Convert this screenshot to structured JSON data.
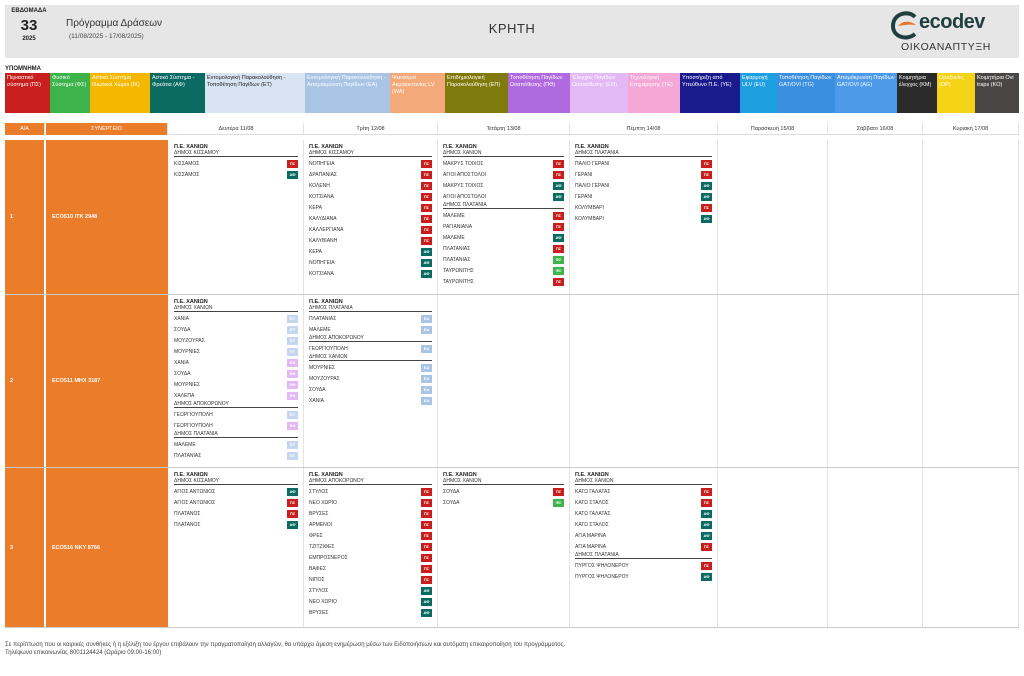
{
  "header": {
    "week_label": "ΕΒΔΟΜΑΔΑ",
    "week_number": "33",
    "year": "2025",
    "program_title": "Πρόγραμμα Δράσεων",
    "program_range": "(11/08/2025 - 17/08/2025)",
    "region": "ΚΡΗΤΗ",
    "logo_word": "ecodev",
    "logo_sub": "ΟΙΚΟΑΝΑΠΤΥΞΗ"
  },
  "legend": {
    "title": "ΥΠΟΜΝΗΜΑ",
    "items": [
      {
        "code": "ΠΣ",
        "label": "Περιαστικό σύστημα (ΠΣ)",
        "bg": "#c81e1e",
        "fg": "#ffffff"
      },
      {
        "code": "ΦΣ",
        "label": "Φυσικό Σύστημα (ΦΣ)",
        "bg": "#3cb44b",
        "fg": "#ffffff"
      },
      {
        "code": "ΙΧ",
        "label": "Αστικό Σύστημα Ιδιωτικοί Χώροι (ΙΧ)",
        "bg": "#f5b800",
        "fg": "#ffffff"
      },
      {
        "code": "ΑΦ",
        "label": "Αστικό Σύστημα - Φρεάτια (ΑΦ)",
        "bg": "#0b6b63",
        "fg": "#ffffff"
      },
      {
        "code": "ΕΤ",
        "label": "Εντομολογική Παρακολούθηση - Τοποθέτηση Παγίδων (ΕΤ)",
        "bg": "#d9e4f2",
        "fg": "#222222"
      },
      {
        "code": "ΕΑ",
        "label": "Εντομολογική Παρακολούθηση - Απομάκρυνση Παγίδων (ΕΑ)",
        "bg": "#a9c4e4",
        "fg": "#ffffff"
      },
      {
        "code": "WA",
        "label": "Ψεκασμοί Ακμαιοκτονίας LV (WA)",
        "bg": "#f4a97a",
        "fg": "#ffffff"
      },
      {
        "code": "ΕΠ",
        "label": "Επιδημιολογική Παρακολούθηση (ΕΠ)",
        "bg": "#807a0c",
        "fg": "#ffffff"
      },
      {
        "code": "ΠΘ",
        "label": "Τοποθέτηση Παγίδων Ωοαπόθεσης (ΠΘ)",
        "bg": "#b06ae0",
        "fg": "#ffffff"
      },
      {
        "code": "ΕΘ",
        "label": "Έλεγχος Παγίδων Ωοαπόθεσης (ΕΘ)",
        "bg": "#e2b8f5",
        "fg": "#ffffff"
      },
      {
        "code": "ΤΕ",
        "label": "Τεχνολογική Επιχείρησης (ΤΕ)",
        "bg": "#f5a7d6",
        "fg": "#ffffff"
      },
      {
        "code": "ΥΕ",
        "label": "Υποστήριξη από Υπεύθυνο Π.Ε. (ΥΕ)",
        "bg": "#1a1a8c",
        "fg": "#ffffff"
      },
      {
        "code": "EU",
        "label": "Εφαρμογή ULV (EU)",
        "bg": "#1e9fe0",
        "fg": "#ffffff"
      },
      {
        "code": "TG",
        "label": "Τοποθέτηση Παγίδων GAT/OVI (TG)",
        "bg": "#3a8fe0",
        "fg": "#ffffff"
      },
      {
        "code": "AG",
        "label": "Απομάκρυνση Παγίδων GAT/OVI (AG)",
        "bg": "#4d9be8",
        "fg": "#ffffff"
      },
      {
        "code": "KM",
        "label": "Κοιμητήρια έλεγχος (KM)",
        "bg": "#2b2b2b",
        "fg": "#ffffff"
      },
      {
        "code": "OP",
        "label": "Οροξυνίες (OP)",
        "bg": "#f5d316",
        "fg": "#ffffff"
      },
      {
        "code": "KO",
        "label": "Κοιμητήρια Ovi traps (KO)",
        "bg": "#4a4646",
        "fg": "#ffffff"
      }
    ]
  },
  "table": {
    "col_aa": "Α/Α",
    "col_syn": "ΣΥΝΕΡΓΕΙΟ",
    "days": [
      "Δευτέρα 11/08",
      "Τρίτη 12/08",
      "Τετάρτη 13/08",
      "Πέμπτη 14/08",
      "Παρασκευή 15/08",
      "Σάββατο 16/08",
      "Κυριακή 17/08"
    ]
  },
  "badge_colors": {
    "ΠΣ": "#c81e1e",
    "ΑΦ": "#0b6b63",
    "ΦΣ": "#3cb44b",
    "ΕΤ": "#c4d7ee",
    "ΕΑ": "#a9c4e4",
    "ΕΘ": "#e2b8f5"
  },
  "rows": [
    {
      "aa": "1",
      "team": "ECO510   ΙΤΚ 2948",
      "days": [
        {
          "pe": "Π.Ε. ΧΑΝΙΩΝ",
          "groups": [
            {
              "muni": "ΔΗΜΟΣ ΚΙΣΣΑΜΟΥ",
              "entries": [
                [
                  "ΚΙΣΣΑΜΟΣ",
                  "ΠΣ"
                ],
                [
                  "ΚΙΣΣΑΜΟΣ",
                  "ΑΦ"
                ]
              ]
            }
          ]
        },
        {
          "pe": "Π.Ε. ΧΑΝΙΩΝ",
          "groups": [
            {
              "muni": "ΔΗΜΟΣ ΚΙΣΣΑΜΟΥ",
              "entries": [
                [
                  "ΝΟΠΗΓΕΙΑ",
                  "ΠΣ"
                ],
                [
                  "ΔΡΑΠΑΝΙΑΣ",
                  "ΠΣ"
                ],
                [
                  "ΚΟΛΕΝΗ",
                  "ΠΣ"
                ],
                [
                  "ΚΟΤΣΙΑΝΑ",
                  "ΠΣ"
                ],
                [
                  "ΚΕΡΑ",
                  "ΠΣ"
                ],
                [
                  "ΚΑΛΥΔΙΑΝΑ",
                  "ΠΣ"
                ],
                [
                  "ΚΑΛΛΕΡΓΙΑΝΑ",
                  "ΠΣ"
                ],
                [
                  "ΚΑΛΥΒΙΑΝΗ",
                  "ΠΣ"
                ],
                [
                  "ΚΕΡΑ",
                  "ΑΦ"
                ],
                [
                  "ΝΟΠΗΓΕΙΑ",
                  "ΑΦ"
                ],
                [
                  "ΚΟΤΣΙΑΝΑ",
                  "ΑΦ"
                ]
              ]
            }
          ]
        },
        {
          "pe": "Π.Ε. ΧΑΝΙΩΝ",
          "groups": [
            {
              "muni": "ΔΗΜΟΣ ΧΑΝΙΩΝ",
              "entries": [
                [
                  "ΜΑΚΡΥΣ ΤΟΙΧΟΣ",
                  "ΠΣ"
                ],
                [
                  "ΑΓΙΟΙ ΑΠΟΣΤΟΛΟΙ",
                  "ΠΣ"
                ],
                [
                  "ΜΑΚΡΥΣ ΤΟΙΧΟΣ",
                  "ΑΦ"
                ],
                [
                  "ΑΓΙΟΙ ΑΠΟΣΤΟΛΟΙ",
                  "ΑΦ"
                ]
              ]
            },
            {
              "muni": "ΔΗΜΟΣ ΠΛΑΤΑΝΙΑ",
              "entries": [
                [
                  "ΜΑΛΕΜΕ",
                  "ΠΣ"
                ],
                [
                  "ΡΑΓΙΑΝΙΑΝΑ",
                  "ΠΣ"
                ],
                [
                  "ΜΑΛΕΜΕ",
                  "ΑΦ"
                ],
                [
                  "ΠΛΑΤΑΝΙΑΣ",
                  "ΠΣ"
                ],
                [
                  "ΠΛΑΤΑΝΙΑΣ",
                  "ΦΣ"
                ],
                [
                  "ΤΑΥΡΩΝΙΤΗΣ",
                  "ΦΣ"
                ],
                [
                  "ΤΑΥΡΩΝΙΤΗΣ",
                  "ΠΣ"
                ]
              ]
            }
          ]
        },
        {
          "pe": "Π.Ε. ΧΑΝΙΩΝ",
          "groups": [
            {
              "muni": "ΔΗΜΟΣ ΠΛΑΤΑΝΙΑ",
              "entries": [
                [
                  "ΠΑΛΙΟ ΓΕΡΑΝΙ",
                  "ΠΣ"
                ],
                [
                  "ΓΕΡΑΝΙ",
                  "ΠΣ"
                ],
                [
                  "ΠΑΛΙΟ ΓΕΡΑΝΙ",
                  "ΑΦ"
                ],
                [
                  "ΓΕΡΑΝΙ",
                  "ΑΦ"
                ],
                [
                  "ΚΟΛΥΜΒΑΡΙ",
                  "ΠΣ"
                ],
                [
                  "ΚΟΛΥΜΒΑΡΙ",
                  "ΑΦ"
                ]
              ]
            }
          ]
        },
        null,
        null,
        null
      ]
    },
    {
      "aa": "2",
      "team": "ECO511   ΜΗΧ 3187",
      "days": [
        {
          "pe": "Π.Ε. ΧΑΝΙΩΝ",
          "groups": [
            {
              "muni": "ΔΗΜΟΣ ΧΑΝΙΩΝ",
              "entries": [
                [
                  "ΧΑΝΙΑ",
                  "ΕΤ"
                ],
                [
                  "ΣΟΥΔΑ",
                  "ΕΤ"
                ],
                [
                  "ΜΟΥΖΟΥΡΑΣ",
                  "ΕΤ"
                ],
                [
                  "ΜΟΥΡΝΙΕΣ",
                  "ΕΤ"
                ],
                [
                  "ΧΑΝΙΑ",
                  "ΕΘ"
                ],
                [
                  "ΣΟΥΔΑ",
                  "ΕΘ"
                ],
                [
                  "ΜΟΥΡΝΙΕΣ",
                  "ΕΘ"
                ],
                [
                  "ΧΑΛΕΠΑ",
                  "ΕΘ"
                ]
              ]
            },
            {
              "muni": "ΔΗΜΟΣ ΑΠΟΚΟΡΩΝΟΥ",
              "entries": [
                [
                  "ΓΕΩΡΓΙΟΥΠΟΛΗ",
                  "ΕΤ"
                ],
                [
                  "ΓΕΩΡΓΙΟΥΠΟΛΗ",
                  "ΕΘ"
                ]
              ]
            },
            {
              "muni": "ΔΗΜΟΣ ΠΛΑΤΑΝΙΑ",
              "entries": [
                [
                  "ΜΑΛΕΜΕ",
                  "ΕΤ"
                ],
                [
                  "ΠΛΑΤΑΝΙΑΣ",
                  "ΕΤ"
                ]
              ]
            }
          ]
        },
        {
          "pe": "Π.Ε. ΧΑΝΙΩΝ",
          "groups": [
            {
              "muni": "ΔΗΜΟΣ ΠΛΑΤΑΝΙΑ",
              "entries": [
                [
                  "ΠΛΑΤΑΝΙΑΣ",
                  "ΕΑ"
                ],
                [
                  "ΜΑΛΕΜΕ",
                  "ΕΑ"
                ]
              ]
            },
            {
              "muni": "ΔΗΜΟΣ ΑΠΟΚΟΡΩΝΟΥ",
              "entries": [
                [
                  "ΓΕΩΡΓΙΟΥΠΟΛΗ",
                  "ΕΑ"
                ]
              ]
            },
            {
              "muni": "ΔΗΜΟΣ ΧΑΝΙΩΝ",
              "entries": [
                [
                  "ΜΟΥΡΝΙΕΣ",
                  "ΕΑ"
                ],
                [
                  "ΜΟΥΖΟΥΡΑΣ",
                  "ΕΑ"
                ],
                [
                  "ΣΟΥΔΑ",
                  "ΕΑ"
                ],
                [
                  "ΧΑΝΙΑ",
                  "ΕΑ"
                ]
              ]
            }
          ]
        },
        null,
        null,
        null,
        null,
        null
      ]
    },
    {
      "aa": "3",
      "team": "ECO516   ΝΚΥ 8766",
      "days": [
        {
          "pe": "Π.Ε. ΧΑΝΙΩΝ",
          "groups": [
            {
              "muni": "ΔΗΜΟΣ ΚΙΣΣΑΜΟΥ",
              "entries": [
                [
                  "ΑΓΙΟΣ ΑΝΤΩΝΙΟΣ",
                  "ΑΦ"
                ],
                [
                  "ΑΓΙΟΣ ΑΝΤΩΝΙΟΣ",
                  "ΠΣ"
                ],
                [
                  "ΠΛΑΤΑΝΟΣ",
                  "ΠΣ"
                ],
                [
                  "ΠΛΑΤΑΝΟΣ",
                  "ΑΦ"
                ]
              ]
            }
          ]
        },
        {
          "pe": "Π.Ε. ΧΑΝΙΩΝ",
          "groups": [
            {
              "muni": "ΔΗΜΟΣ ΑΠΟΚΟΡΩΝΟΥ",
              "entries": [
                [
                  "ΣΤΥΛΟΣ",
                  "ΠΣ"
                ],
                [
                  "ΝΕΟ ΧΩΡΙΟ",
                  "ΠΣ"
                ],
                [
                  "ΒΡΥΣΕΣ",
                  "ΠΣ"
                ],
                [
                  "ΑΡΜΕΝΟΙ",
                  "ΠΣ"
                ],
                [
                  "ΦΡΕΣ",
                  "ΠΣ"
                ],
                [
                  "ΤΖΙΤΖΙΦΕΣ",
                  "ΠΣ"
                ],
                [
                  "ΕΜΠΡΟΣΝΕΡΟΣ",
                  "ΠΣ"
                ],
                [
                  "ΒΑΦΕΣ",
                  "ΠΣ"
                ],
                [
                  "ΝΙΠΟΣ",
                  "ΠΣ"
                ],
                [
                  "ΣΤΥΛΟΣ",
                  "ΑΦ"
                ],
                [
                  "ΝΕΟ ΧΩΡΙΟ",
                  "ΑΦ"
                ],
                [
                  "ΒΡΥΣΕΣ",
                  "ΑΦ"
                ]
              ]
            }
          ]
        },
        {
          "pe": "Π.Ε. ΧΑΝΙΩΝ",
          "groups": [
            {
              "muni": "ΔΗΜΟΣ ΧΑΝΙΩΝ",
              "entries": [
                [
                  "ΣΟΥΔΑ",
                  "ΠΣ"
                ],
                [
                  "ΣΟΥΔΑ",
                  "ΦΣ"
                ]
              ]
            }
          ]
        },
        {
          "pe": "Π.Ε. ΧΑΝΙΩΝ",
          "groups": [
            {
              "muni": "ΔΗΜΟΣ ΧΑΝΙΩΝ",
              "entries": [
                [
                  "ΚΑΤΩ ΓΑΛΑΤΑΣ",
                  "ΠΣ"
                ],
                [
                  "ΚΑΤΩ ΣΤΑΛΟΣ",
                  "ΠΣ"
                ],
                [
                  "ΚΑΤΩ ΓΑΛΑΤΑΣ",
                  "ΑΦ"
                ],
                [
                  "ΚΑΤΩ ΣΤΑΛΟΣ",
                  "ΑΦ"
                ],
                [
                  "ΑΓΙΑ ΜΑΡΙΝΑ",
                  "ΑΦ"
                ],
                [
                  "ΑΓΙΑ ΜΑΡΙΝΑ",
                  "ΠΣ"
                ]
              ]
            },
            {
              "muni": "ΔΗΜΟΣ ΠΛΑΤΑΝΙΑ",
              "entries": [
                [
                  "ΠΥΡΓΟΣ ΨΗΛΟΝΕΡΟΥ",
                  "ΠΣ"
                ],
                [
                  "ΠΥΡΓΟΣ ΨΗΛΟΝΕΡΟΥ",
                  "ΑΦ"
                ]
              ]
            }
          ]
        },
        null,
        null,
        null
      ]
    }
  ],
  "footer": {
    "line1": "Σε περίπτωση που οι καιρικές συνθήκες ή η εξέλιξη του έργου επιβάλουν την πραγματοποίηση αλλαγών, θα υπάρχει άμεση ενημέρωση μέσω των Ειδοποιήσεων και αυτόματη επικαιροποίηση του προγράμματος.",
    "line2": "Τηλέφωνο επικοινωνίας 8001124424 (Ωράριο 09:00-16:00)"
  }
}
